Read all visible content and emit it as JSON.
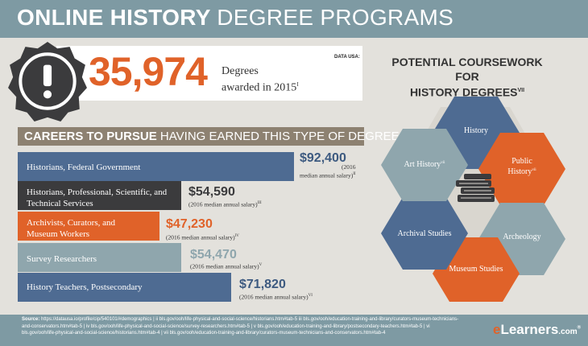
{
  "banner": {
    "title_bold": "ONLINE HISTORY",
    "title_light": "DEGREE PROGRAMS"
  },
  "stat": {
    "number": "35,974",
    "label_line1": "Degrees",
    "label_line2": "awarded in 2015",
    "label_ref": "I",
    "source": "DATA USA:",
    "icon": "exclamation-icon"
  },
  "careers": {
    "title_bold": "CAREERS TO PURSUE",
    "title_rest": " HAVING EARNED THIS TYPE OF DEGREE",
    "items": [
      {
        "label": "Historians, Federal Government",
        "salary": "$92,400",
        "note_a": "(2016",
        "note_b": "median annual salary)",
        "ref": "II",
        "color": "#4e6b92",
        "salary_color": "#3d5a80"
      },
      {
        "label": "Historians, Professional, Scientific, and Technical Services",
        "salary": "$54,590",
        "note_a": "",
        "note_b": "(2016 median annual salary)",
        "ref": "III",
        "color": "#3b3b3d",
        "salary_color": "#3b3b3d"
      },
      {
        "label": "Archivists, Curators, and Museum Workers",
        "salary": "$47,230",
        "note_a": "",
        "note_b": "(2016 median annual salary)",
        "ref": "IV",
        "color": "#e06229",
        "salary_color": "#e06229"
      },
      {
        "label": "Survey Researchers",
        "salary": "$54,470",
        "note_a": "",
        "note_b": "(2016 median annual salary)",
        "ref": "V",
        "color": "#8fa6ad",
        "salary_color": "#8fa6ad"
      },
      {
        "label": "History Teachers, Postsecondary",
        "salary": "$71,820",
        "note_a": "",
        "note_b": "(2016 median annual salary)",
        "ref": "VI",
        "color": "#4e6b92",
        "salary_color": "#3d5a80"
      }
    ]
  },
  "coursework": {
    "title_line1": "POTENTIAL COURSEWORK FOR",
    "title_line2": "HISTORY DEGREES",
    "title_ref": "VII",
    "center_icon": "books-icon",
    "hexes": [
      {
        "label": "History",
        "ref": "",
        "color": "#4e6b92"
      },
      {
        "label": "Public History",
        "ref": "vii",
        "color": "#e06229"
      },
      {
        "label": "Archeology",
        "ref": "",
        "color": "#8fa6ad"
      },
      {
        "label": "Museum Studies",
        "ref": "",
        "color": "#e06229"
      },
      {
        "label": "Archival Studies",
        "ref": "",
        "color": "#4e6b92"
      },
      {
        "label": "Art History",
        "ref": "vii",
        "color": "#8fa6ad"
      }
    ]
  },
  "footer": {
    "source_label": "Source:",
    "source_text": " https://datausa.io/profile/cip/540101/#demographics | ii bls.gov/ooh/life-physical-and-social-science/historians.htm#tab-5 iii bls.gov/ooh/education-training-and-library/curators-museum-technicians-and-conservators.htm#tab-5 | iv bls.gov/ooh/life-physical-and-social-science/survey-researchers.htm#tab-5 | v bls.gov/ooh/education-training-and-library/postsecondary-teachers.htm#tab-5 | vi bls.gov/ooh/life-physical-and-social-science/historians.htm#tab-4 | vii bls.gov/ooh/education-training-and-library/curators-museum-technicians-and-conservators.htm#tab-4",
    "brand_e": "e",
    "brand_rest": "Learners",
    "brand_suffix": ".com",
    "brand_reg": "®"
  }
}
